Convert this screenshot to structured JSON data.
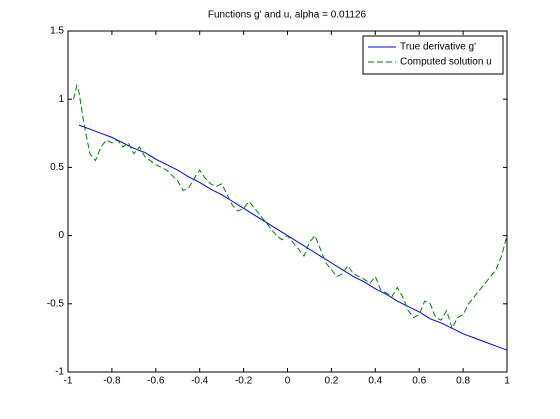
{
  "chart_data": {
    "type": "line",
    "title": "Functions g' and u, alpha = 0.01126",
    "xlim": [
      -1,
      1
    ],
    "xticks": [
      -1,
      -0.8,
      -0.6,
      -0.4,
      -0.2,
      0,
      0.2,
      0.4,
      0.6,
      0.8,
      1
    ],
    "ylim": [
      -1,
      1.5
    ],
    "yticks": [
      -1,
      -0.5,
      0,
      0.5,
      1,
      1.5
    ],
    "legend": "upper right",
    "series": [
      {
        "name": "True derivative g'",
        "color": "#0000ff",
        "dash": "solid",
        "x": [
          -0.95,
          -0.9,
          -0.85,
          -0.8,
          -0.75,
          -0.7,
          -0.65,
          -0.6,
          -0.55,
          -0.5,
          -0.45,
          -0.4,
          -0.35,
          -0.3,
          -0.25,
          -0.2,
          -0.15,
          -0.1,
          -0.05,
          0,
          0.05,
          0.1,
          0.15,
          0.2,
          0.25,
          0.3,
          0.35,
          0.4,
          0.45,
          0.5,
          0.55,
          0.6,
          0.65,
          0.7,
          0.75,
          0.8,
          0.85,
          0.9,
          0.95,
          1
        ],
        "values": [
          0.81,
          0.78,
          0.75,
          0.72,
          0.68,
          0.64,
          0.61,
          0.56,
          0.52,
          0.48,
          0.43,
          0.39,
          0.34,
          0.3,
          0.25,
          0.2,
          0.15,
          0.1,
          0.05,
          0,
          -0.05,
          -0.1,
          -0.15,
          -0.2,
          -0.25,
          -0.3,
          -0.34,
          -0.39,
          -0.43,
          -0.48,
          -0.52,
          -0.56,
          -0.61,
          -0.64,
          -0.68,
          -0.72,
          -0.75,
          -0.78,
          -0.81,
          -0.84
        ]
      },
      {
        "name": "Computed solution u",
        "color": "#008000",
        "dash": "dashed",
        "x": [
          -0.975,
          -0.96,
          -0.95,
          -0.925,
          -0.9,
          -0.875,
          -0.85,
          -0.825,
          -0.8,
          -0.775,
          -0.75,
          -0.725,
          -0.7,
          -0.675,
          -0.65,
          -0.625,
          -0.6,
          -0.575,
          -0.55,
          -0.525,
          -0.5,
          -0.475,
          -0.45,
          -0.425,
          -0.4,
          -0.375,
          -0.35,
          -0.325,
          -0.3,
          -0.275,
          -0.25,
          -0.225,
          -0.2,
          -0.175,
          -0.15,
          -0.125,
          -0.1,
          -0.075,
          -0.05,
          -0.025,
          0,
          0.025,
          0.05,
          0.075,
          0.1,
          0.125,
          0.15,
          0.175,
          0.2,
          0.225,
          0.25,
          0.275,
          0.3,
          0.325,
          0.35,
          0.375,
          0.4,
          0.425,
          0.45,
          0.475,
          0.5,
          0.525,
          0.55,
          0.575,
          0.6,
          0.625,
          0.65,
          0.675,
          0.7,
          0.725,
          0.75,
          0.775,
          0.8,
          0.825,
          0.85,
          0.875,
          0.9,
          0.925,
          0.95,
          0.975,
          1
        ],
        "values": [
          1.0,
          1.1,
          1.05,
          0.8,
          0.6,
          0.55,
          0.65,
          0.7,
          0.68,
          0.7,
          0.65,
          0.68,
          0.6,
          0.65,
          0.58,
          0.55,
          0.52,
          0.5,
          0.48,
          0.44,
          0.4,
          0.33,
          0.35,
          0.42,
          0.48,
          0.42,
          0.38,
          0.36,
          0.38,
          0.3,
          0.22,
          0.18,
          0.2,
          0.25,
          0.2,
          0.15,
          0.1,
          0.05,
          0.0,
          -0.03,
          0.0,
          -0.05,
          -0.1,
          -0.15,
          -0.05,
          0.0,
          -0.1,
          -0.2,
          -0.25,
          -0.3,
          -0.28,
          -0.22,
          -0.28,
          -0.3,
          -0.32,
          -0.35,
          -0.3,
          -0.4,
          -0.42,
          -0.45,
          -0.38,
          -0.45,
          -0.55,
          -0.6,
          -0.58,
          -0.48,
          -0.5,
          -0.6,
          -0.62,
          -0.55,
          -0.68,
          -0.6,
          -0.58,
          -0.5,
          -0.45,
          -0.4,
          -0.35,
          -0.3,
          -0.25,
          -0.15,
          0.0
        ]
      }
    ]
  }
}
